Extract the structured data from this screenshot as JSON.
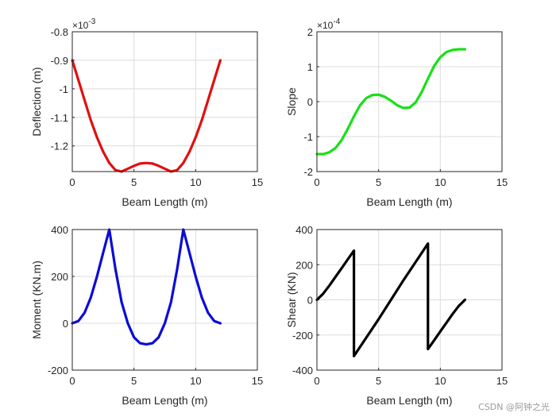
{
  "watermark": "CSDN @阿钟之光",
  "chart_data": [
    {
      "type": "line",
      "xlabel": "Beam Length (m)",
      "ylabel": "Deflection (m)",
      "exponent": "-3",
      "xlim": [
        0,
        15
      ],
      "ylim": [
        -1.29,
        -0.8
      ],
      "xticks": [
        0,
        5,
        10,
        15
      ],
      "yticks": [
        -1.2,
        -1.1,
        -1.0,
        -0.9,
        -0.8
      ],
      "yticklabels": [
        "-1.2",
        "-1.1",
        "-1",
        "-0.9",
        "-0.8"
      ],
      "grid": true,
      "color": "#e01010",
      "series": [
        {
          "x": [
            0,
            0.5,
            1,
            1.5,
            2,
            2.5,
            3,
            3.5,
            4,
            4.5,
            5,
            5.5,
            6,
            6.5,
            7,
            7.5,
            8,
            8.5,
            9,
            9.5,
            10,
            10.5,
            11,
            11.5,
            12
          ],
          "values": [
            -0.9,
            -0.97,
            -1.04,
            -1.11,
            -1.17,
            -1.22,
            -1.26,
            -1.285,
            -1.29,
            -1.28,
            -1.27,
            -1.262,
            -1.26,
            -1.262,
            -1.27,
            -1.28,
            -1.29,
            -1.285,
            -1.26,
            -1.22,
            -1.17,
            -1.11,
            -1.04,
            -0.97,
            -0.9
          ]
        }
      ]
    },
    {
      "type": "line",
      "xlabel": "Beam Length (m)",
      "ylabel": "Slope",
      "exponent": "-4",
      "xlim": [
        0,
        15
      ],
      "ylim": [
        -2,
        2
      ],
      "xticks": [
        0,
        5,
        10,
        15
      ],
      "yticks": [
        -2,
        -1,
        0,
        1,
        2
      ],
      "yticklabels": [
        "-2",
        "-1",
        "0",
        "1",
        "2"
      ],
      "grid": true,
      "color": "#18e018",
      "series": [
        {
          "x": [
            0,
            0.5,
            1,
            1.5,
            2,
            2.5,
            3,
            3.5,
            4,
            4.5,
            5,
            5.5,
            6,
            6.5,
            7,
            7.5,
            8,
            8.5,
            9,
            9.5,
            10,
            10.5,
            11,
            11.5,
            12
          ],
          "values": [
            -1.5,
            -1.5,
            -1.45,
            -1.33,
            -1.1,
            -0.78,
            -0.42,
            -0.1,
            0.1,
            0.19,
            0.2,
            0.14,
            0.03,
            -0.1,
            -0.18,
            -0.17,
            -0.02,
            0.28,
            0.66,
            1.02,
            1.27,
            1.42,
            1.48,
            1.5,
            1.5
          ]
        }
      ]
    },
    {
      "type": "line",
      "xlabel": "Beam Length (m)",
      "ylabel": "Moment (KN.m)",
      "exponent": "",
      "xlim": [
        0,
        15
      ],
      "ylim": [
        -200,
        400
      ],
      "xticks": [
        0,
        5,
        10,
        15
      ],
      "yticks": [
        -200,
        0,
        200,
        400
      ],
      "yticklabels": [
        "-200",
        "0",
        "200",
        "400"
      ],
      "grid": true,
      "color": "#0c0cd8",
      "series": [
        {
          "x": [
            0,
            0.5,
            1,
            1.5,
            2,
            2.5,
            3,
            3.5,
            4,
            4.5,
            5,
            5.5,
            6,
            6.5,
            7,
            7.5,
            8,
            8.5,
            9,
            9.5,
            10,
            10.5,
            11,
            11.5,
            12
          ],
          "values": [
            0,
            10,
            45,
            110,
            200,
            300,
            400,
            230,
            90,
            0,
            -60,
            -85,
            -90,
            -85,
            -60,
            0,
            90,
            230,
            400,
            300,
            200,
            110,
            45,
            10,
            0
          ]
        }
      ]
    },
    {
      "type": "line",
      "xlabel": "Beam Length (m)",
      "ylabel": "Shear (KN)",
      "exponent": "",
      "xlim": [
        0,
        15
      ],
      "ylim": [
        -400,
        400
      ],
      "xticks": [
        0,
        5,
        10,
        15
      ],
      "yticks": [
        -400,
        -200,
        0,
        200,
        400
      ],
      "yticklabels": [
        "-400",
        "-200",
        "0",
        "200",
        "400"
      ],
      "grid": true,
      "color": "#000000",
      "series": [
        {
          "x": [
            0,
            0.5,
            1,
            1.5,
            2,
            2.5,
            3,
            3,
            4,
            5,
            6,
            7,
            8,
            9,
            9,
            9.5,
            10,
            10.5,
            11,
            11.5,
            12
          ],
          "values": [
            0,
            35,
            80,
            130,
            180,
            230,
            280,
            -320,
            -215,
            -110,
            0,
            110,
            215,
            320,
            -280,
            -230,
            -180,
            -130,
            -80,
            -35,
            0
          ]
        }
      ]
    }
  ]
}
